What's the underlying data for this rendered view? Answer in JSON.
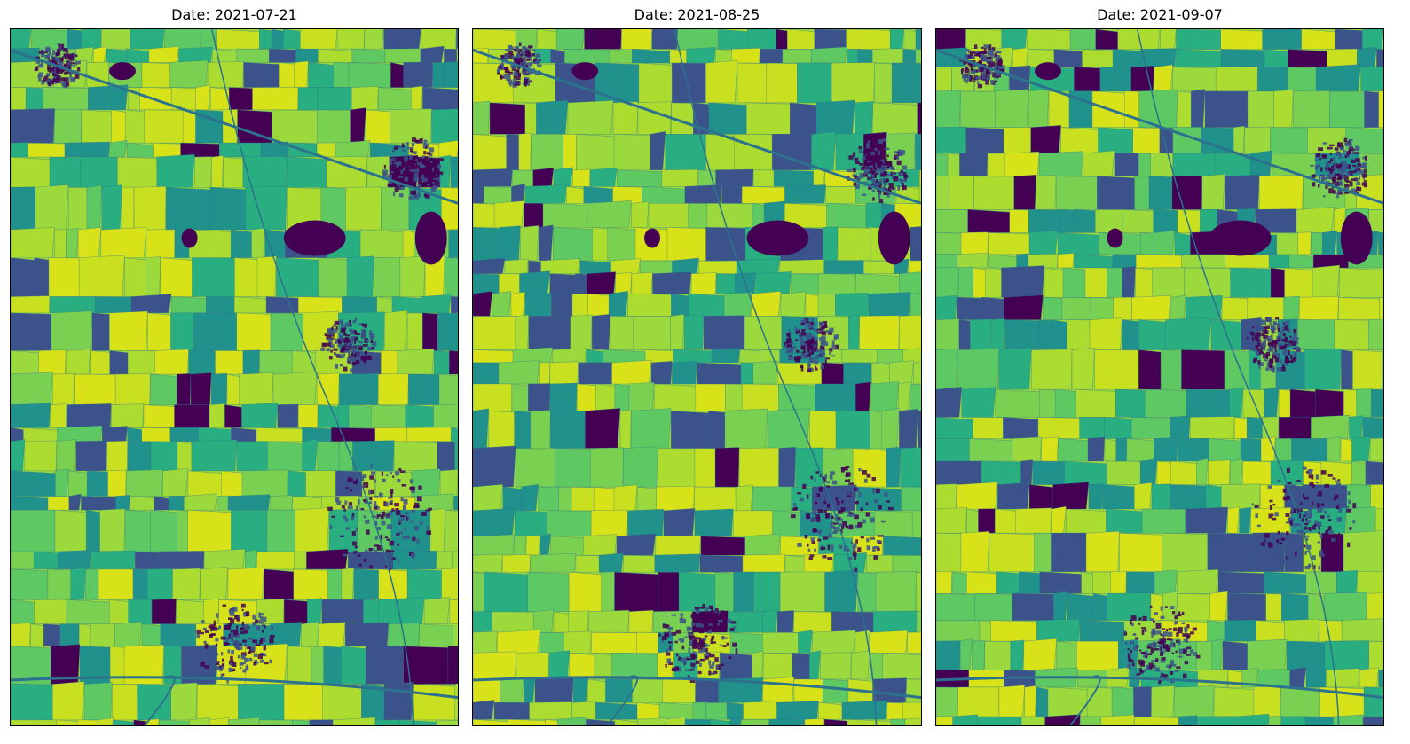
{
  "figure": {
    "panels": [
      {
        "title": "Date: 2021-07-21",
        "seed": 11
      },
      {
        "title": "Date: 2021-08-25",
        "seed": 29
      },
      {
        "title": "Date: 2021-09-07",
        "seed": 47
      }
    ],
    "colormap": "viridis",
    "colors": {
      "low": "#440154",
      "mid_low": "#3b528b",
      "mid": "#21918c",
      "mid_high": "#5ec962",
      "high": "#c8e020"
    }
  }
}
